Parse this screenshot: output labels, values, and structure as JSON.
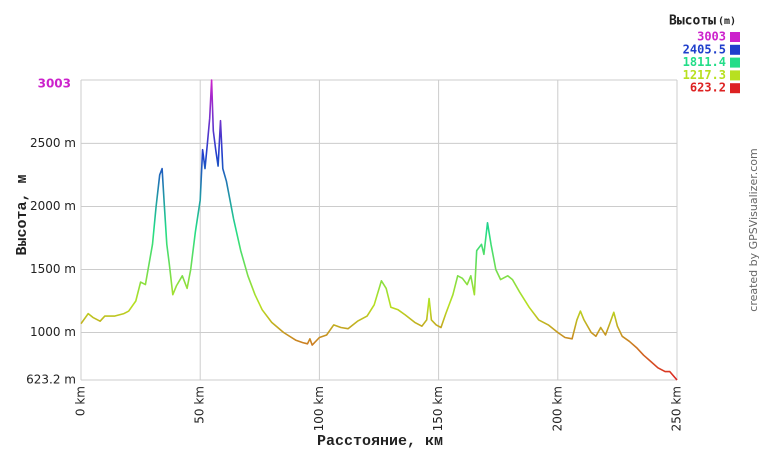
{
  "chart_data": {
    "type": "line",
    "ylabel": "Высота, м",
    "xlabel": "Расстояние, км",
    "credit": "created by GPSVisualizer.com",
    "xlim": [
      0,
      250
    ],
    "xticks": [
      {
        "value": 0,
        "label": "0 km"
      },
      {
        "value": 50,
        "label": "50 km"
      },
      {
        "value": 100,
        "label": "100 km"
      },
      {
        "value": 150,
        "label": "150 km"
      },
      {
        "value": 200,
        "label": "200 km"
      },
      {
        "value": 250,
        "label": "250 km"
      }
    ],
    "ylim": [
      623.2,
      3003
    ],
    "yticks": [
      {
        "value": 623.2,
        "label": "623.2 m"
      },
      {
        "value": 1000,
        "label": "1000 m"
      },
      {
        "value": 1500,
        "label": "1500 m"
      },
      {
        "value": 2000,
        "label": "2000 m"
      },
      {
        "value": 2500,
        "label": "2500 m"
      },
      3003
    ],
    "grid": true,
    "legend": {
      "title": "Высоты",
      "unit": "(m)",
      "position": "top-right",
      "items": [
        {
          "value": 3003,
          "color": "#cc22cc"
        },
        {
          "value": 2405.5,
          "color": "#1f3fcc"
        },
        {
          "value": 1811.4,
          "color": "#22dd88"
        },
        {
          "value": 1217.3,
          "color": "#b8e020"
        },
        {
          "value": 623.2,
          "color": "#dd2222"
        }
      ]
    },
    "x": [
      0,
      3,
      5,
      8,
      10,
      14,
      18,
      20,
      23,
      25,
      27,
      30,
      31.5,
      33,
      34,
      35,
      36,
      37,
      38.5,
      40,
      42.5,
      44.5,
      46,
      48,
      50,
      51,
      52,
      53,
      54,
      54.8,
      55.5,
      56.5,
      57.5,
      58.5,
      59.5,
      61,
      64,
      67,
      70,
      73,
      76,
      80,
      85,
      90,
      93,
      95,
      96,
      97,
      100,
      103,
      106,
      109,
      112,
      116,
      120,
      123,
      126,
      128,
      130,
      133,
      136,
      140,
      143,
      145,
      146,
      147,
      149,
      151,
      153,
      156,
      158,
      160,
      162,
      163.5,
      165,
      166,
      168,
      169,
      170.5,
      172,
      174,
      176,
      179,
      181,
      184,
      188,
      192,
      196,
      200,
      203,
      206,
      208,
      209.5,
      211,
      214,
      216,
      218,
      220,
      222,
      223.5,
      225,
      227,
      230,
      233,
      236,
      239,
      242,
      245,
      247,
      250
    ],
    "values": [
      1070,
      1150,
      1120,
      1090,
      1130,
      1130,
      1150,
      1170,
      1250,
      1400,
      1380,
      1700,
      2000,
      2250,
      2300,
      2000,
      1700,
      1550,
      1300,
      1370,
      1450,
      1350,
      1500,
      1800,
      2050,
      2450,
      2300,
      2500,
      2700,
      3003,
      2600,
      2450,
      2320,
      2680,
      2300,
      2200,
      1900,
      1650,
      1450,
      1300,
      1180,
      1080,
      1000,
      940,
      920,
      910,
      950,
      900,
      960,
      980,
      1060,
      1040,
      1030,
      1090,
      1130,
      1220,
      1410,
      1350,
      1200,
      1180,
      1140,
      1080,
      1050,
      1100,
      1270,
      1100,
      1060,
      1040,
      1150,
      1300,
      1450,
      1430,
      1380,
      1450,
      1300,
      1650,
      1700,
      1620,
      1870,
      1700,
      1500,
      1420,
      1450,
      1420,
      1320,
      1200,
      1100,
      1060,
      1000,
      960,
      950,
      1100,
      1170,
      1100,
      1000,
      970,
      1040,
      980,
      1080,
      1160,
      1050,
      970,
      930,
      880,
      820,
      770,
      720,
      690,
      690,
      623.2
    ]
  }
}
